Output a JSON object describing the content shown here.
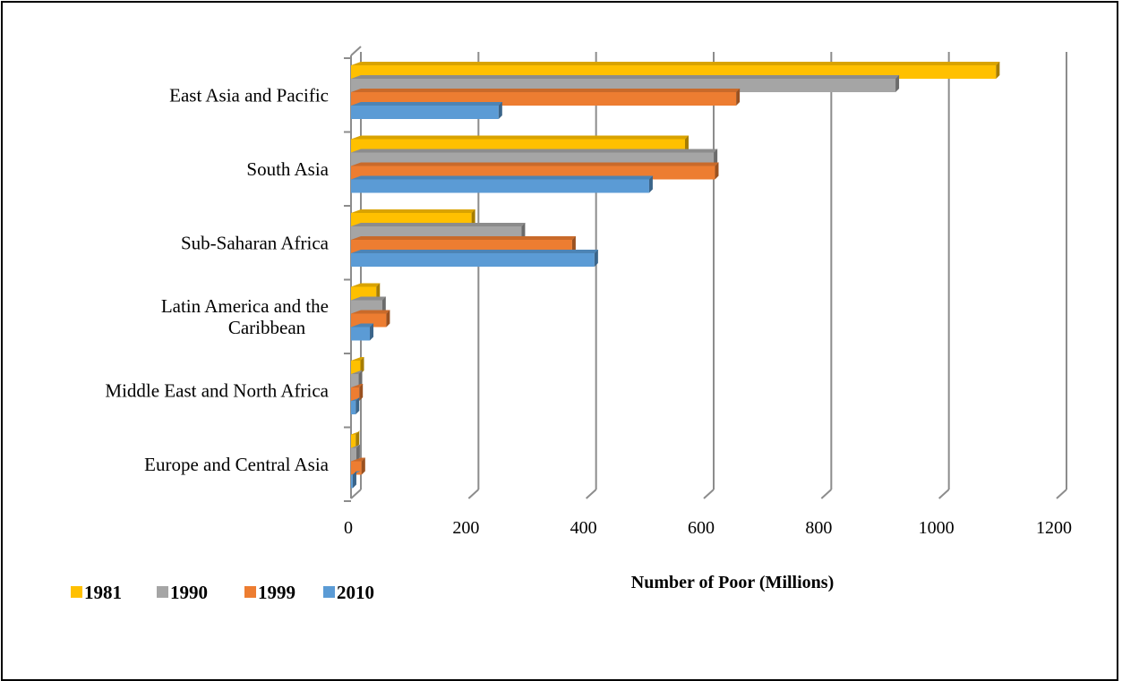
{
  "chart_data": {
    "type": "bar",
    "orientation": "horizontal",
    "style": "3d",
    "categories": [
      "East Asia and Pacific",
      "South Asia",
      "Sub-Saharan Africa",
      "Latin America and the Caribbean",
      "Middle East and North Africa",
      "Europe and Central Asia"
    ],
    "category_lines": [
      [
        "East Asia and Pacific"
      ],
      [
        "South Asia"
      ],
      [
        "Sub-Saharan Africa"
      ],
      [
        "Latin America and the",
        "Caribbean"
      ],
      [
        "Middle East and North Africa"
      ],
      [
        "Europe and Central Asia"
      ]
    ],
    "series": [
      {
        "name": "1981",
        "color": "#FFC000",
        "values": [
          1097,
          568,
          205,
          43,
          16,
          8
        ]
      },
      {
        "name": "1990",
        "color": "#A5A5A5",
        "values": [
          926,
          617,
          290,
          53,
          13,
          9
        ]
      },
      {
        "name": "1999",
        "color": "#ED7D31",
        "values": [
          655,
          619,
          376,
          60,
          14,
          18
        ]
      },
      {
        "name": "2010",
        "color": "#5B9BD5",
        "values": [
          251,
          507,
          414,
          32,
          8,
          3
        ]
      }
    ],
    "xlabel": "Number of Poor (Millions)",
    "xlim": [
      0,
      1200
    ],
    "xticks": [
      "0",
      "200",
      "400",
      "600",
      "800",
      "1000",
      "1200"
    ],
    "grid": true,
    "legend_position": "bottom-left"
  }
}
